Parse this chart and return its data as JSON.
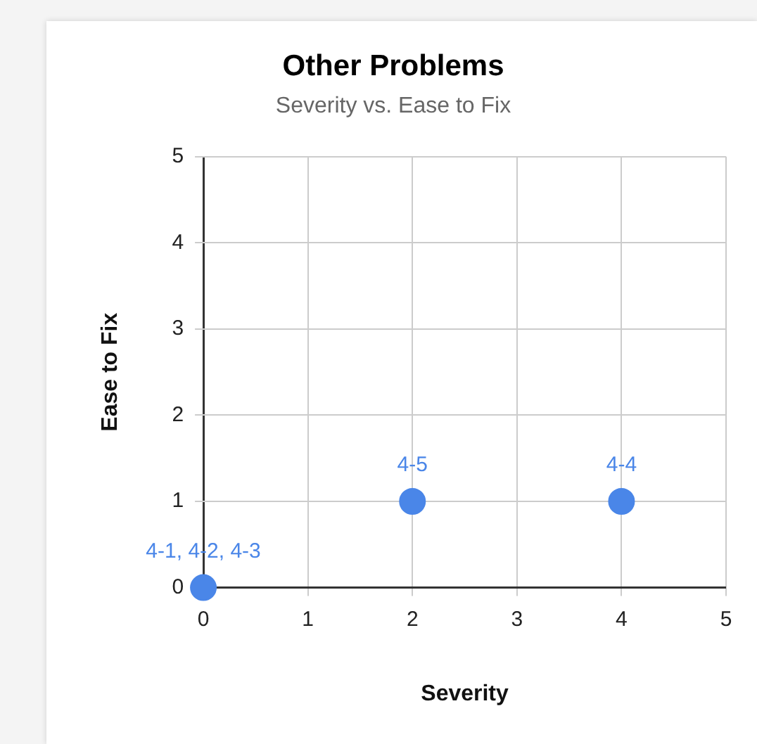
{
  "chart_data": {
    "type": "scatter",
    "title": "Other Problems",
    "subtitle": "Severity vs. Ease to Fix",
    "xlabel": "Severity",
    "ylabel": "Ease to Fix",
    "x": [
      0,
      2,
      4
    ],
    "series": [
      {
        "color": "#4a86e8",
        "values": [
          0,
          1,
          1
        ]
      }
    ],
    "xlim": [
      0,
      5
    ],
    "xticks": [
      0,
      1,
      2,
      3,
      4,
      5
    ],
    "ylim": [
      0,
      5
    ],
    "yticks": [
      0,
      1,
      2,
      3,
      4,
      5
    ],
    "grid": true,
    "legend": false,
    "marker": "circle",
    "annotations": [
      {
        "text": "4-1, 4-2, 4-3",
        "x": 0,
        "y": 0
      },
      {
        "text": "4-5",
        "x": 2,
        "y": 1
      },
      {
        "text": "4-4",
        "x": 4,
        "y": 1
      }
    ]
  }
}
